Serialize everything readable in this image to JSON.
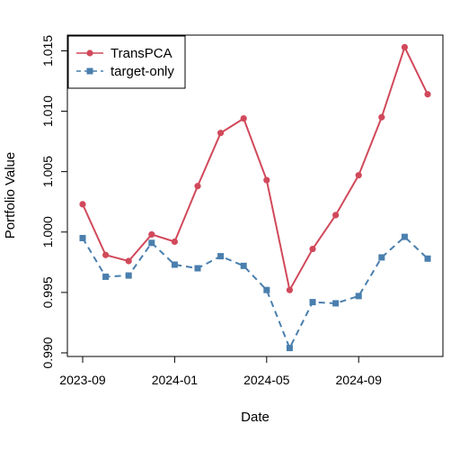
{
  "chart_data": {
    "type": "line",
    "title": "",
    "xlabel": "Date",
    "ylabel": "Portfolio Value",
    "x": [
      "2023-09",
      "2023-10",
      "2023-11",
      "2023-12",
      "2024-01",
      "2024-02",
      "2024-03",
      "2024-04",
      "2024-05",
      "2024-06",
      "2024-07",
      "2024-08",
      "2024-09",
      "2024-10",
      "2024-11",
      "2024-12"
    ],
    "xticks": [
      {
        "value": "2023-09",
        "label": "2023-09"
      },
      {
        "value": "2024-01",
        "label": "2024-01"
      },
      {
        "value": "2024-05",
        "label": "2024-05"
      },
      {
        "value": "2024-09",
        "label": "2024-09"
      }
    ],
    "yticks": [
      {
        "value": 0.99,
        "label": "0.990"
      },
      {
        "value": 0.995,
        "label": "0.995"
      },
      {
        "value": 1.0,
        "label": "1.000"
      },
      {
        "value": 1.005,
        "label": "1.005"
      },
      {
        "value": 1.01,
        "label": "1.010"
      },
      {
        "value": 1.015,
        "label": "1.015"
      }
    ],
    "ylim": [
      0.9897,
      1.0163
    ],
    "grid": false,
    "legend_position": "top-left",
    "series": [
      {
        "name": "TransPCA",
        "color": "#d1495b",
        "marker": "circle",
        "line_style": "solid",
        "values": [
          1.0023,
          0.9981,
          0.9976,
          0.9998,
          0.9992,
          1.0038,
          1.0082,
          1.0094,
          1.0043,
          0.9952,
          0.9986,
          1.0014,
          1.0047,
          1.0095,
          1.0153,
          1.0114
        ]
      },
      {
        "name": "target-only",
        "color": "#4a7fae",
        "marker": "square",
        "line_style": "dashed",
        "values": [
          0.9995,
          0.9963,
          0.9964,
          0.9991,
          0.9973,
          0.997,
          0.998,
          0.9972,
          0.9952,
          0.9904,
          0.9942,
          0.9941,
          0.9947,
          0.9979,
          0.9996,
          0.9978
        ]
      }
    ]
  }
}
